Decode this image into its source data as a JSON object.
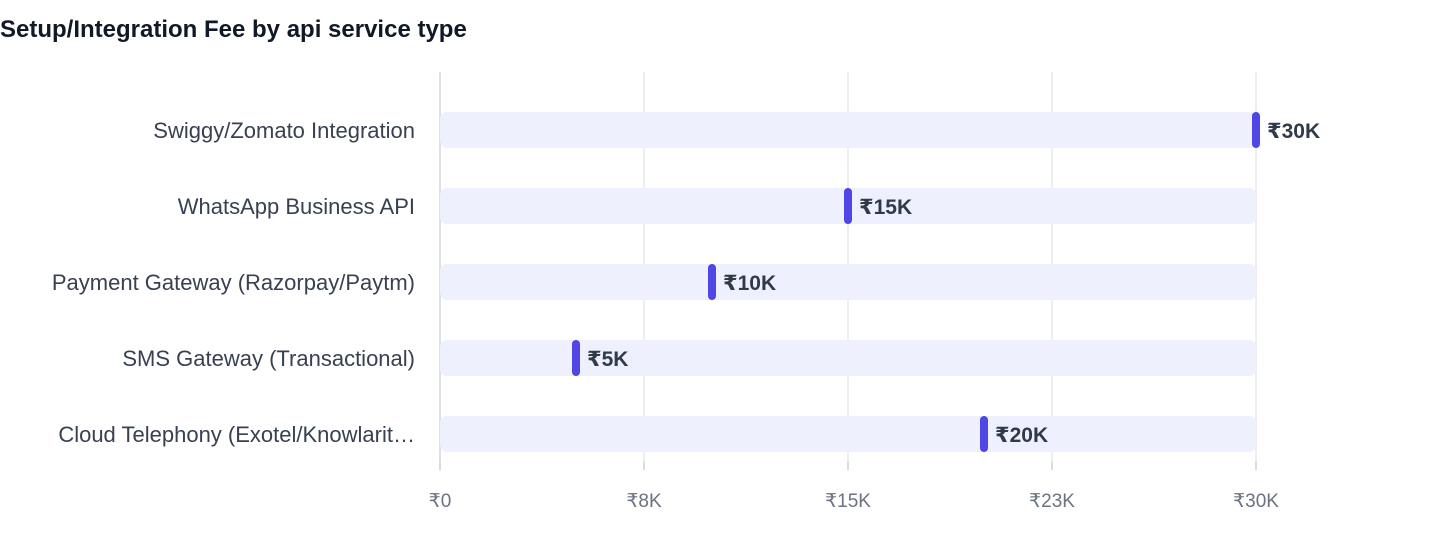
{
  "chart_data": {
    "type": "bar",
    "title": "Setup/Integration Fee by api service type",
    "xlabel": "",
    "ylabel": "",
    "categories": [
      "Swiggy/Zomato Integration",
      "WhatsApp Business API",
      "Payment Gateway (Razorpay/Paytm)",
      "SMS Gateway (Transactional)",
      "Cloud Telephony (Exotel/Knowlarit…"
    ],
    "values": [
      30000,
      15000,
      10000,
      5000,
      20000
    ],
    "value_labels": [
      "₹30K",
      "₹15K",
      "₹10K",
      "₹5K",
      "₹20K"
    ],
    "xlim": [
      0,
      30000
    ],
    "x_ticks": [
      0,
      7500,
      15000,
      22500,
      30000
    ],
    "x_tick_labels": [
      "₹0",
      "₹8K",
      "₹15K",
      "₹23K",
      "₹30K"
    ],
    "grid": true,
    "orientation": "horizontal",
    "colors": {
      "marker": "#4f46e5",
      "track": "#eef0fd",
      "grid": "#e5e7eb",
      "axis": "#d1d5db"
    }
  }
}
